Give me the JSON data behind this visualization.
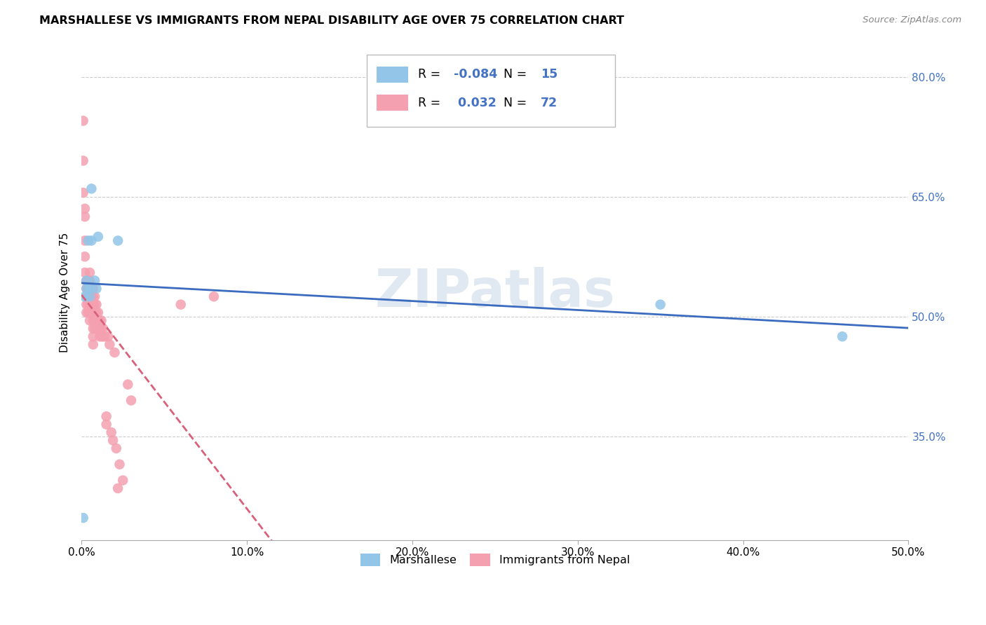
{
  "title": "MARSHALLESE VS IMMIGRANTS FROM NEPAL DISABILITY AGE OVER 75 CORRELATION CHART",
  "source": "Source: ZipAtlas.com",
  "ylabel": "Disability Age Over 75",
  "xlim": [
    0.0,
    0.5
  ],
  "ylim": [
    0.22,
    0.84
  ],
  "xtick_labels": [
    "0.0%",
    "10.0%",
    "20.0%",
    "30.0%",
    "40.0%",
    "50.0%"
  ],
  "xtick_vals": [
    0.0,
    0.1,
    0.2,
    0.3,
    0.4,
    0.5
  ],
  "ytick_labels": [
    "35.0%",
    "50.0%",
    "65.0%",
    "80.0%"
  ],
  "ytick_vals": [
    0.35,
    0.5,
    0.65,
    0.8
  ],
  "r_marshallese": "-0.084",
  "n_marshallese": "15",
  "r_nepal": "0.032",
  "n_nepal": "72",
  "color_marshallese": "#92c5e8",
  "color_nepal": "#f4a0b0",
  "line_color_marshallese": "#3a6bbf",
  "line_color_nepal": "#d9607a",
  "watermark": "ZIPatlas",
  "legend_label_1": "Marshallese",
  "legend_label_2": "Immigrants from Nepal",
  "marshallese_x": [
    0.001,
    0.002,
    0.003,
    0.003,
    0.004,
    0.005,
    0.005,
    0.006,
    0.006,
    0.008,
    0.009,
    0.01,
    0.022,
    0.35,
    0.46
  ],
  "marshallese_y": [
    0.248,
    0.525,
    0.535,
    0.545,
    0.595,
    0.525,
    0.535,
    0.66,
    0.595,
    0.545,
    0.535,
    0.6,
    0.595,
    0.515,
    0.475
  ],
  "nepal_x": [
    0.001,
    0.001,
    0.001,
    0.002,
    0.002,
    0.002,
    0.002,
    0.002,
    0.003,
    0.003,
    0.003,
    0.003,
    0.003,
    0.004,
    0.004,
    0.004,
    0.004,
    0.004,
    0.005,
    0.005,
    0.005,
    0.005,
    0.005,
    0.005,
    0.005,
    0.006,
    0.006,
    0.006,
    0.006,
    0.007,
    0.007,
    0.007,
    0.007,
    0.007,
    0.007,
    0.007,
    0.007,
    0.008,
    0.008,
    0.008,
    0.008,
    0.008,
    0.009,
    0.009,
    0.009,
    0.01,
    0.01,
    0.01,
    0.011,
    0.011,
    0.011,
    0.012,
    0.012,
    0.012,
    0.013,
    0.013,
    0.014,
    0.015,
    0.015,
    0.016,
    0.017,
    0.018,
    0.019,
    0.02,
    0.021,
    0.022,
    0.023,
    0.025,
    0.028,
    0.03,
    0.06,
    0.08
  ],
  "nepal_y": [
    0.745,
    0.695,
    0.655,
    0.635,
    0.625,
    0.595,
    0.575,
    0.555,
    0.545,
    0.535,
    0.525,
    0.515,
    0.505,
    0.545,
    0.535,
    0.525,
    0.515,
    0.505,
    0.555,
    0.545,
    0.535,
    0.525,
    0.515,
    0.505,
    0.495,
    0.535,
    0.525,
    0.515,
    0.505,
    0.535,
    0.525,
    0.515,
    0.505,
    0.495,
    0.485,
    0.475,
    0.465,
    0.525,
    0.515,
    0.505,
    0.495,
    0.485,
    0.515,
    0.505,
    0.495,
    0.505,
    0.495,
    0.485,
    0.495,
    0.485,
    0.475,
    0.495,
    0.485,
    0.475,
    0.485,
    0.475,
    0.475,
    0.375,
    0.365,
    0.475,
    0.465,
    0.355,
    0.345,
    0.455,
    0.335,
    0.285,
    0.315,
    0.295,
    0.415,
    0.395,
    0.515,
    0.525
  ]
}
